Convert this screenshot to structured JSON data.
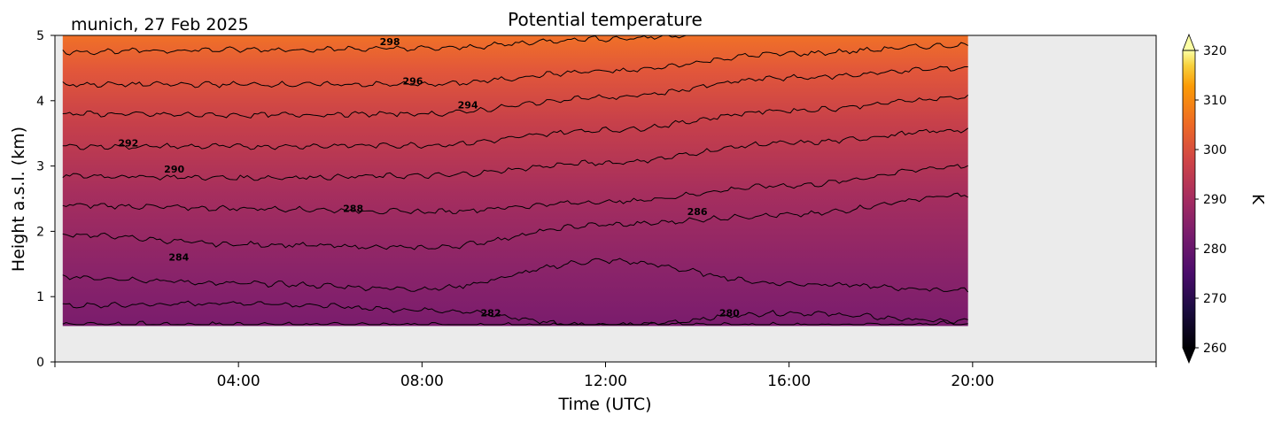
{
  "header": {
    "location_date": "munich, 27 Feb 2025",
    "title": "Potential temperature"
  },
  "chart_data": {
    "type": "heatmap",
    "title": "Potential temperature",
    "subtitle": "munich, 27 Feb 2025",
    "xlabel": "Time (UTC)",
    "ylabel": "Height a.s.l. (km)",
    "xlim_hours": [
      0,
      24
    ],
    "ylim": [
      0,
      5
    ],
    "x_ticks": [
      "04:00",
      "08:00",
      "12:00",
      "16:00",
      "20:00"
    ],
    "x_tick_hours": [
      4,
      8,
      12,
      16,
      20
    ],
    "y_ticks": [
      0,
      1,
      2,
      3,
      4,
      5
    ],
    "data_extent": {
      "time_start_hours": 0.17,
      "time_end_hours": 19.9,
      "height_min_km": 0.55,
      "height_max_km": 5.0
    },
    "missing_color": "#ebebeb",
    "colormap": "inferno",
    "colorbar": {
      "label": "K",
      "min": 260,
      "max": 320,
      "ticks": [
        260,
        270,
        280,
        290,
        300,
        310,
        320
      ],
      "extend": "both"
    },
    "contour_lines": [
      {
        "level": 280,
        "label": "280",
        "heights_km": [
          0.58,
          0.57,
          0.57,
          0.56,
          0.56,
          0.58
        ]
      },
      {
        "level": 282,
        "label": "282",
        "heights_km": [
          0.86,
          0.9,
          0.8,
          0.55,
          0.75,
          0.62
        ]
      },
      {
        "level": 284,
        "label": "284",
        "heights_km": [
          1.3,
          1.2,
          1.12,
          1.55,
          1.2,
          1.1
        ]
      },
      {
        "level": 286,
        "label": "286",
        "heights_km": [
          1.95,
          1.8,
          1.75,
          2.1,
          2.25,
          2.55
        ]
      },
      {
        "level": 288,
        "label": "288",
        "heights_km": [
          2.4,
          2.35,
          2.3,
          2.45,
          2.7,
          3.0
        ]
      },
      {
        "level": 290,
        "label": "290",
        "heights_km": [
          2.85,
          2.82,
          2.85,
          3.05,
          3.35,
          3.55
        ]
      },
      {
        "level": 292,
        "label": "292",
        "heights_km": [
          3.3,
          3.3,
          3.32,
          3.55,
          3.85,
          4.05
        ]
      },
      {
        "level": 294,
        "label": "294",
        "heights_km": [
          3.8,
          3.78,
          3.8,
          4.05,
          4.35,
          4.5
        ]
      },
      {
        "level": 296,
        "label": "296",
        "heights_km": [
          4.25,
          4.25,
          4.25,
          4.45,
          4.72,
          4.85
        ]
      },
      {
        "level": 298,
        "label": "298",
        "heights_km": [
          4.75,
          4.78,
          4.8,
          4.95,
          5.1,
          5.2
        ]
      }
    ],
    "contour_label_positions": [
      {
        "label": "298",
        "hour": 7.3,
        "km": 4.85
      },
      {
        "label": "296",
        "hour": 7.8,
        "km": 4.25
      },
      {
        "label": "294",
        "hour": 9.0,
        "km": 3.88
      },
      {
        "label": "292",
        "hour": 1.6,
        "km": 3.3
      },
      {
        "label": "290",
        "hour": 2.6,
        "km": 2.9
      },
      {
        "label": "288",
        "hour": 6.5,
        "km": 2.3
      },
      {
        "label": "286",
        "hour": 14.0,
        "km": 2.25
      },
      {
        "label": "284",
        "hour": 2.7,
        "km": 1.55
      },
      {
        "label": "282",
        "hour": 9.5,
        "km": 0.7
      },
      {
        "label": "280",
        "hour": 14.7,
        "km": 0.7
      }
    ]
  }
}
